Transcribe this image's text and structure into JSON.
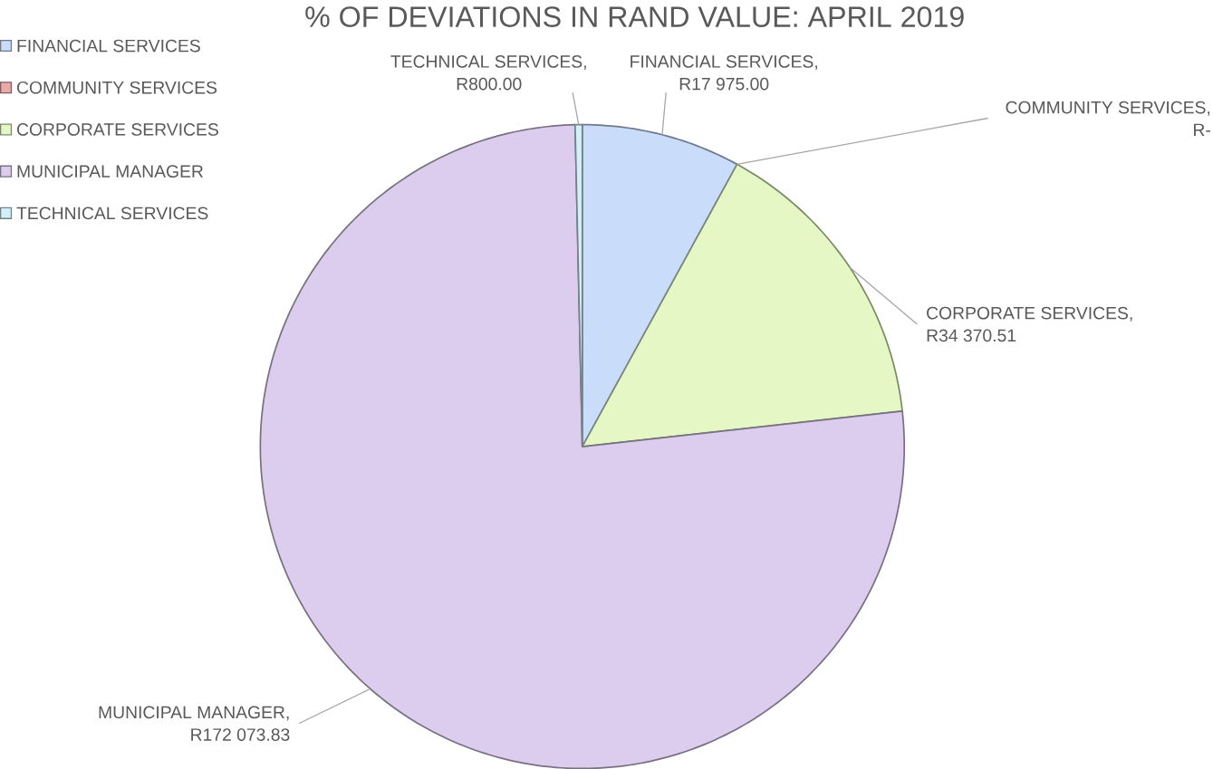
{
  "chart_data": {
    "type": "pie",
    "title": "% OF DEVIATIONS IN RAND VALUE:  APRIL 2019",
    "categories": [
      "FINANCIAL SERVICES",
      "COMMUNITY SERVICES",
      "CORPORATE SERVICES",
      "MUNICIPAL MANAGER",
      "TECHNICAL SERVICES"
    ],
    "values": [
      17975.0,
      0,
      34370.51,
      172073.83,
      800.0
    ],
    "value_labels": [
      "FINANCIAL SERVICES, R17 975.00",
      "COMMUNITY SERVICES, R-",
      "CORPORATE SERVICES, R34 370.51",
      "MUNICIPAL MANAGER, R172 073.83",
      "TECHNICAL SERVICES, R800.00"
    ],
    "colors": [
      "#c9dcf9",
      "#e8a9a8",
      "#e4f7c4",
      "#dccced",
      "#d2f0f7"
    ],
    "legend": "top left"
  }
}
